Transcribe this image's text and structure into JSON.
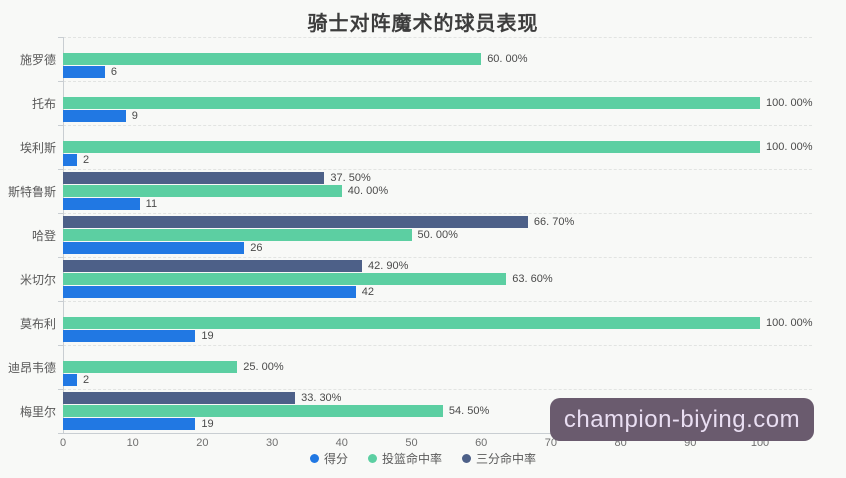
{
  "title": "骑士对阵魔术的球员表现",
  "watermark": "champion-biying.com",
  "colors": {
    "points_blue": "#2178e3",
    "fg_green": "#5ccfa2",
    "three_navy": "#4d6088",
    "watermark_bg": "#6a5b6e",
    "watermark_text": "#e9def2"
  },
  "legend": [
    {
      "key": "points",
      "label": "得分",
      "color": "#2178e3"
    },
    {
      "key": "fg_pct",
      "label": "投篮命中率",
      "color": "#5ccfa2"
    },
    {
      "key": "three_pct",
      "label": "三分命中率",
      "color": "#4d6088"
    }
  ],
  "chart_data": {
    "type": "bar",
    "orientation": "horizontal",
    "title": "骑士对阵魔术的球员表现",
    "categories": [
      "施罗德",
      "托布",
      "埃利斯",
      "斯特鲁斯",
      "哈登",
      "米切尔",
      "莫布利",
      "迪昂韦德",
      "梅里尔"
    ],
    "series": [
      {
        "key": "three_pct",
        "name": "三分命中率",
        "color": "#4d6088",
        "values": [
          null,
          null,
          null,
          37.5,
          66.7,
          42.9,
          null,
          null,
          33.3
        ],
        "labels": [
          null,
          null,
          null,
          "37. 50%",
          "66. 70%",
          "42. 90%",
          null,
          null,
          "33. 30%"
        ]
      },
      {
        "key": "fg_pct",
        "name": "投篮命中率",
        "color": "#5ccfa2",
        "values": [
          60,
          100,
          100,
          40,
          50,
          63.6,
          100,
          25,
          54.5
        ],
        "labels": [
          "60. 00%",
          "100. 00%",
          "100. 00%",
          "40. 00%",
          "50. 00%",
          "63. 60%",
          "100. 00%",
          "25. 00%",
          "54. 50%"
        ]
      },
      {
        "key": "points",
        "name": "得分",
        "color": "#2178e3",
        "values": [
          6,
          9,
          2,
          11,
          26,
          42,
          19,
          2,
          19
        ],
        "labels": [
          "6",
          "9",
          "2",
          "11",
          "26",
          "42",
          "19",
          "2",
          "19"
        ]
      }
    ],
    "x_axis": {
      "tick_labels": [
        "0",
        "10",
        "20",
        "30",
        "40",
        "50",
        "60",
        "70",
        "80",
        "90",
        "100"
      ],
      "ticks": [
        0,
        10,
        20,
        30,
        40,
        50,
        60,
        70,
        80,
        90,
        100
      ]
    },
    "xlim": [
      0,
      100
    ],
    "grid": "dashed horizontal category separators",
    "legend_position": "bottom"
  }
}
